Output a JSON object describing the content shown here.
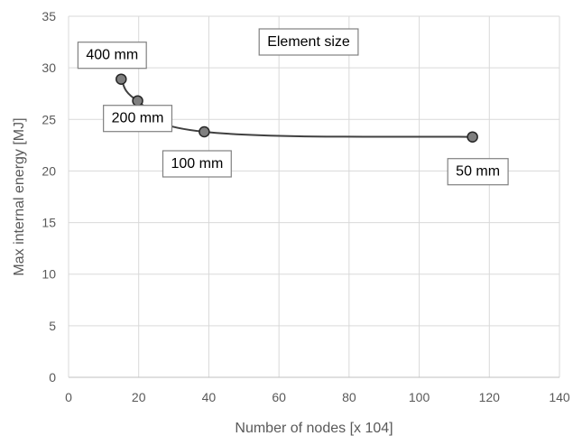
{
  "chart_data": {
    "type": "scatter",
    "title": "",
    "xlabel": "Number of nodes [x 104]",
    "ylabel": "Max internal energy [MJ]",
    "xlim": [
      0,
      140
    ],
    "ylim": [
      0,
      35
    ],
    "xticks": [
      0,
      20,
      40,
      60,
      80,
      100,
      120,
      140
    ],
    "yticks": [
      0,
      5,
      10,
      15,
      20,
      25,
      30,
      35
    ],
    "grid": true,
    "legend": "none",
    "series": [
      {
        "x": [
          15,
          19.7,
          38.7,
          115.2
        ],
        "y": [
          28.9,
          26.8,
          23.8,
          23.3
        ],
        "smooth_line": true,
        "marker_color": "#7f7f7f",
        "line_color": "#404040"
      }
    ],
    "annotations": [
      {
        "text": "400 mm",
        "point": 0
      },
      {
        "text": "200 mm",
        "point": 1
      },
      {
        "text": "100 mm",
        "point": 2
      },
      {
        "text": "50 mm",
        "point": 3
      },
      {
        "text": "Element size",
        "point": null
      }
    ]
  }
}
